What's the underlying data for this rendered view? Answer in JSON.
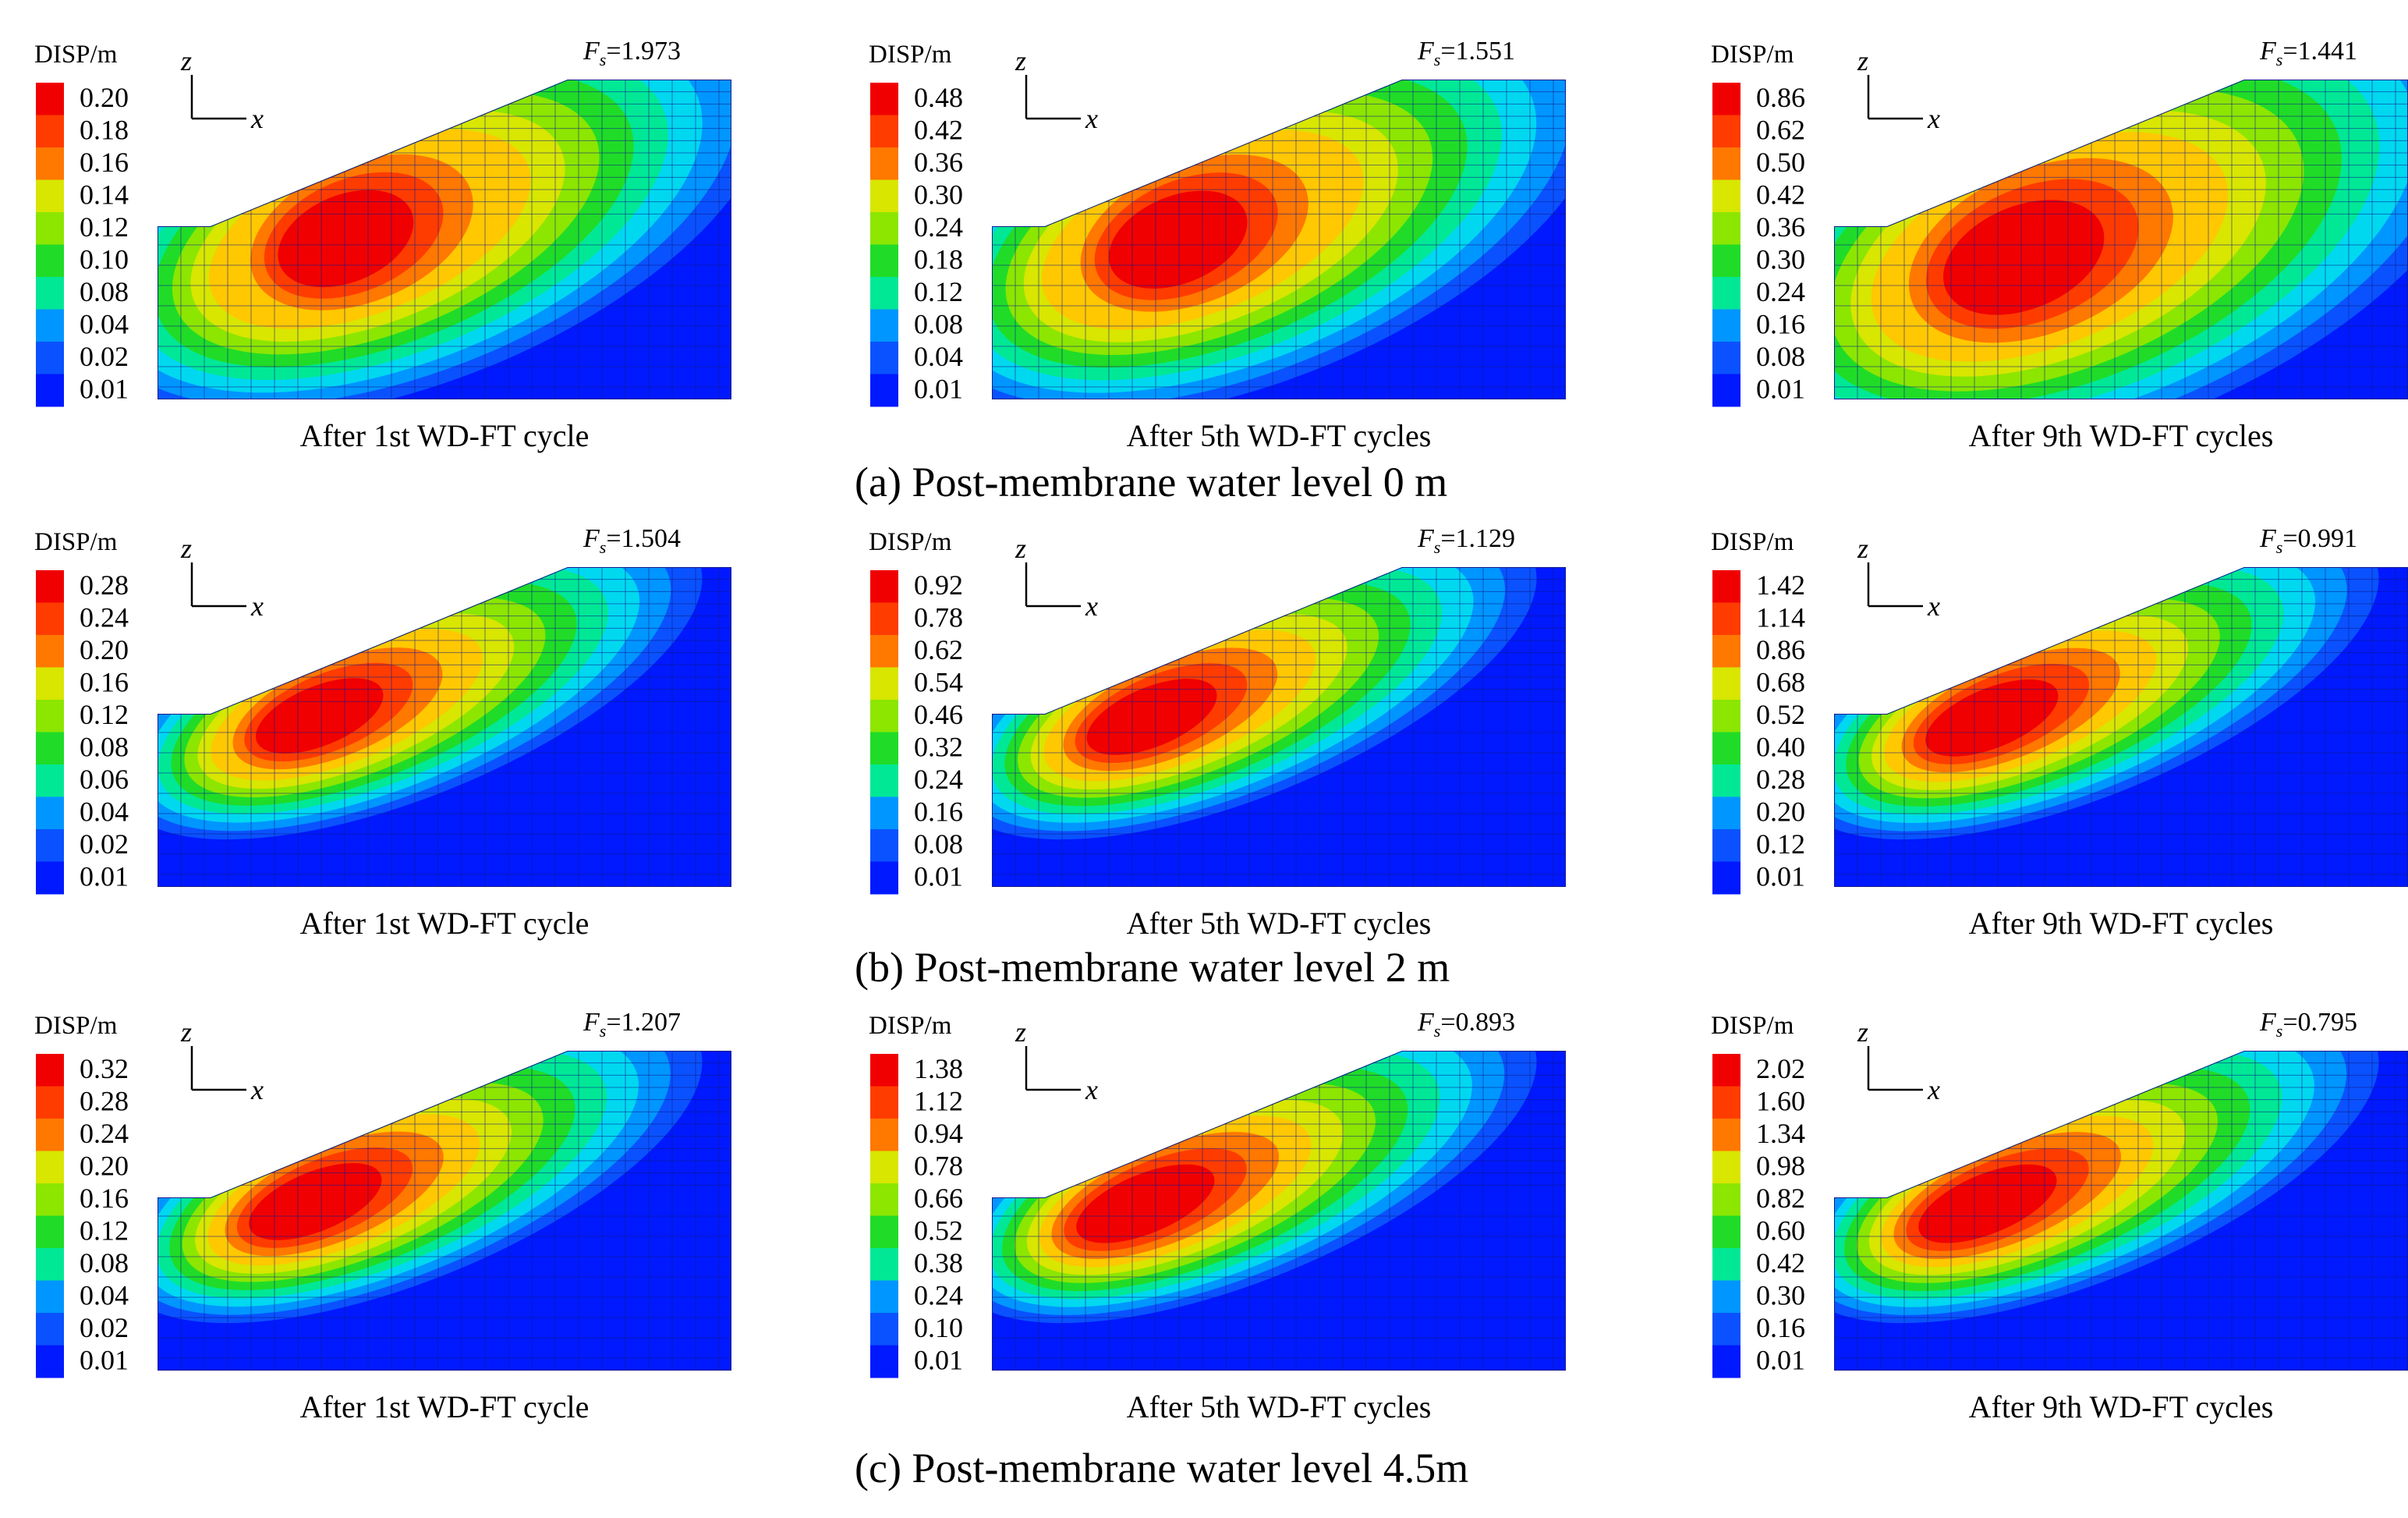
{
  "figure": {
    "colors": {
      "scale": [
        "#0019ff",
        "#0a52ff",
        "#0096ff",
        "#00d8f0",
        "#00e896",
        "#20dc28",
        "#8ce600",
        "#d8e600",
        "#ffc800",
        "#ff7800",
        "#ff3c00",
        "#f00000"
      ],
      "mesh": "#0d1a8a",
      "base": "#0019ff"
    },
    "unit_label": "DISP/m",
    "rows": [
      {
        "caption": "(a) Post-membrane water level 0 m",
        "panels": [
          {
            "fs_symbol": "F",
            "fs_sub": "s",
            "fs_value": "=1.973",
            "caption": "After 1st  WD-FT cycle",
            "ticks": [
              "0.20",
              "0.18",
              "0.16",
              "0.14",
              "0.12",
              "0.10",
              "0.08",
              "0.04",
              "0.02",
              "0.01"
            ],
            "axis_z": "z",
            "axis_x": "x",
            "mode": "deep",
            "intensity": 0.55
          },
          {
            "fs_symbol": "F",
            "fs_sub": "s",
            "fs_value": "=1.551",
            "caption": "After 5th  WD-FT cycles",
            "ticks": [
              "0.48",
              "0.42",
              "0.36",
              "0.30",
              "0.24",
              "0.18",
              "0.12",
              "0.08",
              "0.04",
              "0.01"
            ],
            "axis_z": "z",
            "axis_x": "x",
            "mode": "deep",
            "intensity": 0.6
          },
          {
            "fs_symbol": "F",
            "fs_sub": "s",
            "fs_value": "=1.441",
            "caption": "After 9th  WD-FT cycles",
            "ticks": [
              "0.86",
              "0.62",
              "0.50",
              "0.42",
              "0.36",
              "0.30",
              "0.24",
              "0.16",
              "0.08",
              "0.01"
            ],
            "axis_z": "z",
            "axis_x": "x",
            "mode": "deeper",
            "intensity": 0.7
          }
        ]
      },
      {
        "caption": "(b) Post-membrane water level 2 m",
        "panels": [
          {
            "fs_symbol": "F",
            "fs_sub": "s",
            "fs_value": "=1.504",
            "caption": "After 1st  WD-FT cycle",
            "ticks": [
              "0.28",
              "0.24",
              "0.20",
              "0.16",
              "0.12",
              "0.08",
              "0.06",
              "0.04",
              "0.02",
              "0.01"
            ],
            "axis_z": "z",
            "axis_x": "x",
            "mode": "shallow",
            "intensity": 0.8
          },
          {
            "fs_symbol": "F",
            "fs_sub": "s",
            "fs_value": "=1.129",
            "caption": "After 5th  WD-FT cycles",
            "ticks": [
              "0.92",
              "0.78",
              "0.62",
              "0.54",
              "0.46",
              "0.32",
              "0.24",
              "0.16",
              "0.08",
              "0.01"
            ],
            "axis_z": "z",
            "axis_x": "x",
            "mode": "shallow",
            "intensity": 0.85
          },
          {
            "fs_symbol": "F",
            "fs_sub": "s",
            "fs_value": "=0.991",
            "caption": "After 9th  WD-FT cycles",
            "ticks": [
              "1.42",
              "1.14",
              "0.86",
              "0.68",
              "0.52",
              "0.40",
              "0.28",
              "0.20",
              "0.12",
              "0.01"
            ],
            "axis_z": "z",
            "axis_x": "x",
            "mode": "shallow",
            "intensity": 0.9
          }
        ]
      },
      {
        "caption": "(c) Post-membrane water level 4.5m",
        "panels": [
          {
            "fs_symbol": "F",
            "fs_sub": "s",
            "fs_value": "=1.207",
            "caption": "After 1st  WD-FT cycle",
            "ticks": [
              "0.32",
              "0.28",
              "0.24",
              "0.20",
              "0.16",
              "0.12",
              "0.08",
              "0.04",
              "0.02",
              "0.01"
            ],
            "axis_z": "z",
            "axis_x": "x",
            "mode": "shallow",
            "intensity": 0.9
          },
          {
            "fs_symbol": "F",
            "fs_sub": "s",
            "fs_value": "=0.893",
            "caption": "After 5th  WD-FT cycles",
            "ticks": [
              "1.38",
              "1.12",
              "0.94",
              "0.78",
              "0.66",
              "0.52",
              "0.38",
              "0.24",
              "0.10",
              "0.01"
            ],
            "axis_z": "z",
            "axis_x": "x",
            "mode": "shallow",
            "intensity": 1.0
          },
          {
            "fs_symbol": "F",
            "fs_sub": "s",
            "fs_value": "=0.795",
            "caption": "After 9th  WD-FT cycles",
            "ticks": [
              "2.02",
              "1.60",
              "1.34",
              "0.98",
              "0.82",
              "0.60",
              "0.42",
              "0.30",
              "0.16",
              "0.01"
            ],
            "axis_z": "z",
            "axis_x": "x",
            "mode": "shallow",
            "intensity": 1.0
          }
        ]
      }
    ]
  }
}
